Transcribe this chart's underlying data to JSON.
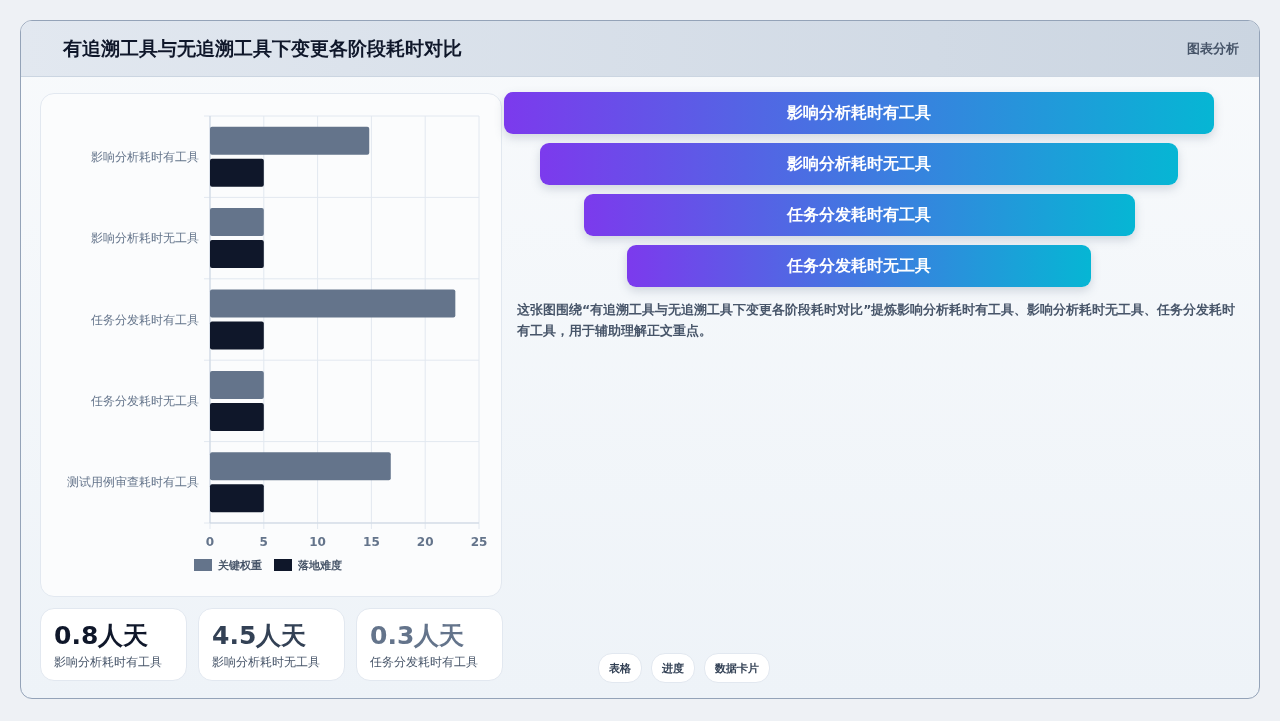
{
  "chart_data": [
    {
      "type": "bar",
      "orientation": "horizontal",
      "title": "有追溯工具与无追溯工具下变更各阶段耗时对比",
      "annotations": [
        "图表分析"
      ],
      "categories": [
        "影响分析耗时有工具",
        "影响分析耗时无工具",
        "任务分发耗时有工具",
        "任务分发耗时无工具",
        "测试用例审查耗时有工具"
      ],
      "series": [
        {
          "name": "关键权重",
          "color": "#64748b",
          "values": [
            14.8,
            5,
            22.8,
            5,
            16.8
          ]
        },
        {
          "name": "落地难度",
          "color": "#0f172a",
          "values": [
            5,
            5,
            5,
            5,
            5
          ]
        }
      ],
      "xlim": [
        0,
        25
      ],
      "xticks": [
        0,
        5,
        10,
        15,
        20,
        25
      ],
      "grid": true,
      "legend": "bottom"
    },
    {
      "type": "other",
      "categories": [
        "影响分析耗时有工具",
        "影响分析耗时无工具",
        "任务分发耗时有工具",
        "任务分发耗时无工具"
      ],
      "annotations": [
        "这张图围绕“有追溯工具与无追溯工具下变更各阶段耗时对比”提炼影响分析耗时有工具、影响分析耗时无工具、任务分发耗时有工具，用于辅助理解正文重点。"
      ]
    },
    {
      "type": "other",
      "categories": [
        "影响分析耗时有工具",
        "影响分析耗时无工具",
        "任务分发耗时有工具"
      ],
      "annotations": [
        "0.8人天",
        "4.5人天",
        "0.3人天",
        "表格",
        "进度",
        "数据卡片"
      ]
    }
  ]
}
